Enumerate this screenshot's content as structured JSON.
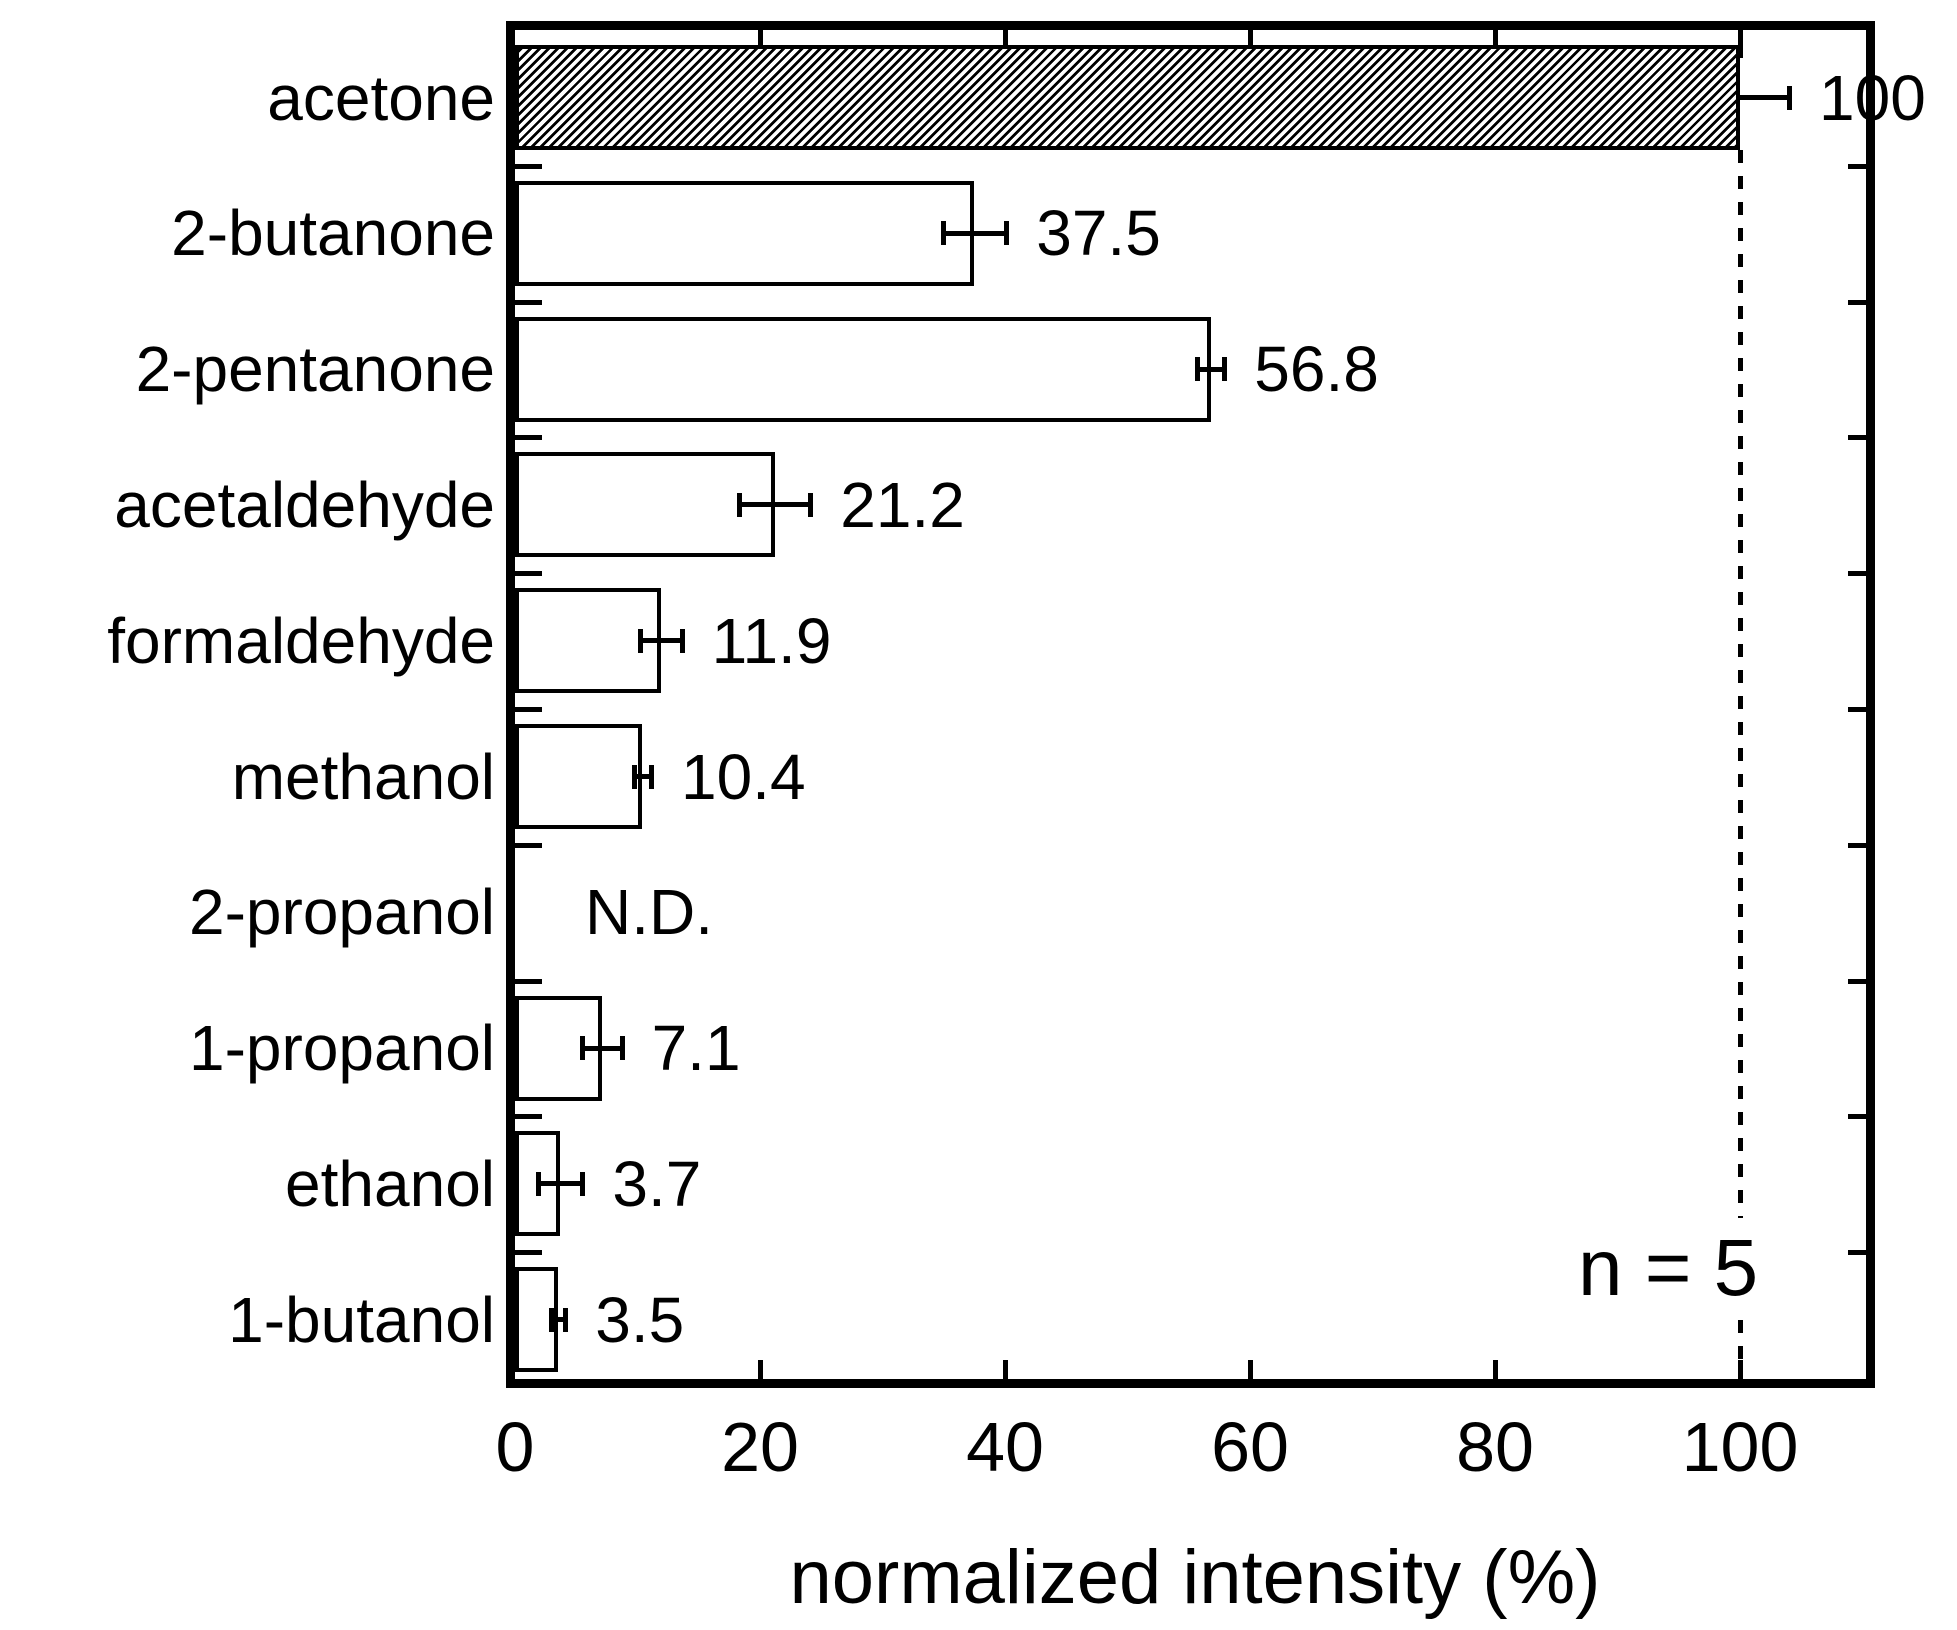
{
  "figure": {
    "background_color": "#ffffff",
    "ink_color": "#000000"
  },
  "chart_data": {
    "type": "bar",
    "orientation": "horizontal",
    "title": "",
    "xlabel": "normalized intensity (%)",
    "ylabel": "",
    "xlim": [
      0,
      111
    ],
    "x_ticks": [
      0,
      20,
      40,
      60,
      80,
      100
    ],
    "x_tick_labels": [
      "0",
      "20",
      "40",
      "60",
      "80",
      "100"
    ],
    "grid": false,
    "legend": null,
    "categories": [
      "acetone",
      "2-butanone",
      "2-pentanone",
      "acetaldehyde",
      "formaldehyde",
      "methanol",
      "2-propanol",
      "1-propanol",
      "ethanol",
      "1-butanol"
    ],
    "values": [
      100,
      37.5,
      56.8,
      21.2,
      11.9,
      10.4,
      null,
      7.1,
      3.7,
      3.5
    ],
    "value_labels": [
      "100",
      "37.5",
      "56.8",
      "21.2",
      "11.9",
      "10.4",
      "N.D.",
      "7.1",
      "3.7",
      "3.5"
    ],
    "errors": [
      4.0,
      2.6,
      1.1,
      2.9,
      1.7,
      0.7,
      null,
      1.6,
      1.8,
      0.6
    ],
    "bar_styles": [
      "hatched",
      "plain",
      "plain",
      "plain",
      "plain",
      "plain",
      "none",
      "plain",
      "plain",
      "plain"
    ],
    "not_detected_label": "N.D.",
    "reference_line_x": 100,
    "annotation": "n = 5"
  }
}
